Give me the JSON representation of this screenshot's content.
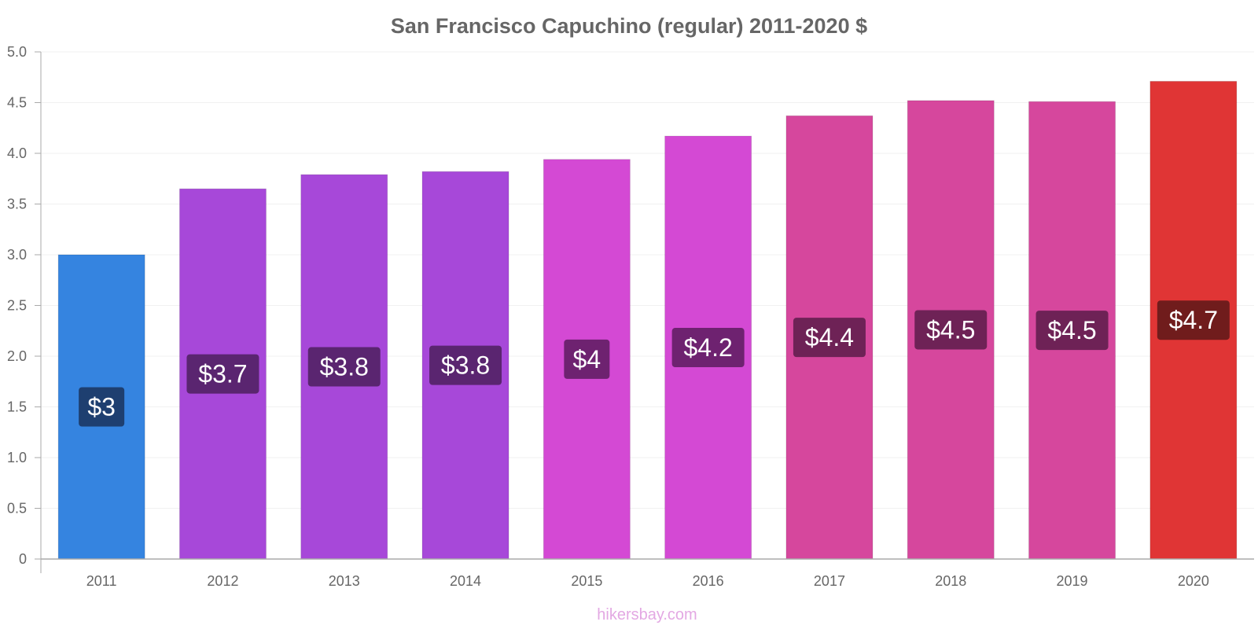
{
  "chart_data": {
    "type": "bar",
    "title": "San Francisco Capuchino (regular) 2011-2020 $",
    "categories": [
      "2011",
      "2012",
      "2013",
      "2014",
      "2015",
      "2016",
      "2017",
      "2018",
      "2019",
      "2020"
    ],
    "values": [
      3.0,
      3.65,
      3.79,
      3.82,
      3.94,
      4.17,
      4.37,
      4.52,
      4.51,
      4.71
    ],
    "data_labels": [
      "$3",
      "$3.7",
      "$3.8",
      "$3.8",
      "$4",
      "$4.2",
      "$4.4",
      "$4.5",
      "$4.5",
      "$4.7"
    ],
    "bar_colors": [
      "#3584e0",
      "#a748d9",
      "#a748d9",
      "#a748d9",
      "#d449d4",
      "#d449d4",
      "#d6479d",
      "#d6479d",
      "#d6479d",
      "#e03535"
    ],
    "label_colors": [
      "#1e3f70",
      "#5a2570",
      "#5a2570",
      "#5a2570",
      "#6e2270",
      "#6e2270",
      "#6e2256",
      "#6e2256",
      "#6e2256",
      "#701c1c"
    ],
    "yticks": [
      "0",
      "0.5",
      "1.0",
      "1.5",
      "2.0",
      "2.5",
      "3.0",
      "3.5",
      "4.0",
      "4.5",
      "5.0"
    ],
    "ylim": [
      0,
      5
    ],
    "xlabel": "",
    "ylabel": "",
    "grid": true
  },
  "source": "hikersbay.com"
}
